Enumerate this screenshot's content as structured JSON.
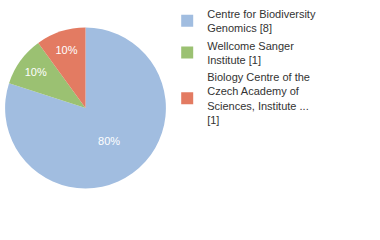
{
  "chart_data": {
    "type": "pie",
    "categories": [
      "Centre for Biodiversity Genomics [8]",
      "Wellcome Sanger Institute [1]",
      "Biology Centre of the Czech Academy of Sciences, Institute ... [1]"
    ],
    "values": [
      80,
      10,
      10
    ],
    "value_labels": [
      "80%",
      "10%",
      "10%"
    ],
    "colors": [
      "#a1bde0",
      "#9bc172",
      "#e37b62"
    ],
    "data_labels": true,
    "legend": "right"
  }
}
